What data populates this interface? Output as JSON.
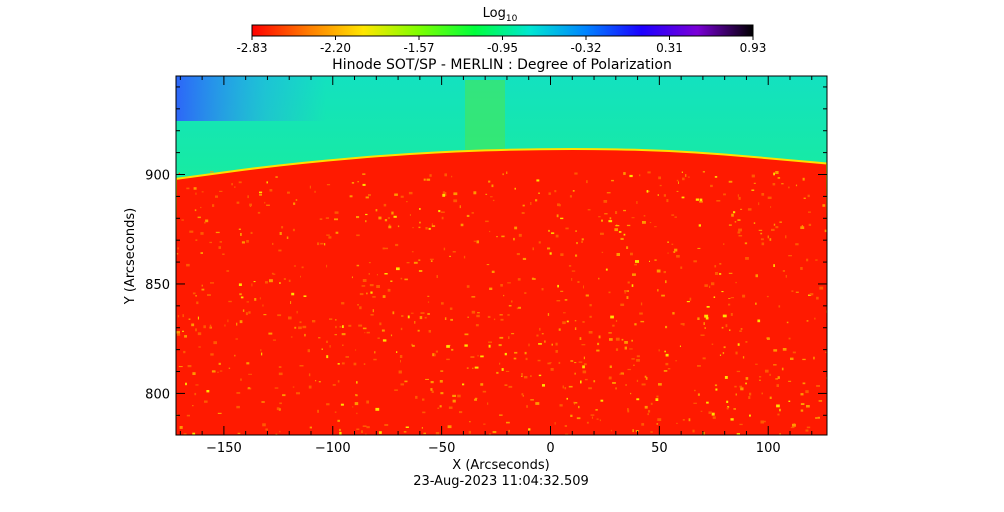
{
  "colorbar": {
    "label_base": "Log",
    "label_sub": "10",
    "ticks": [
      "-2.83",
      "-2.20",
      "-1.57",
      "-0.95",
      "-0.32",
      "0.31",
      "0.93"
    ],
    "range": [
      -2.83,
      0.93
    ],
    "colors": [
      "#ff0000",
      "#ff7a00",
      "#ffe600",
      "#7dff00",
      "#00ff3c",
      "#00e6d2",
      "#0083ff",
      "#1c00ff",
      "#7a00d6",
      "#000000"
    ]
  },
  "title": "Hinode SOT/SP - MERLIN : Degree of Polarization",
  "timestamp": "23-Aug-2023 11:04:32.509",
  "chart_data": {
    "type": "heatmap",
    "title": "Hinode SOT/SP - MERLIN : Degree of Polarization",
    "xlabel": "X (Arcseconds)",
    "ylabel": "Y (Arcseconds)",
    "xlim": [
      -172,
      127
    ],
    "ylim": [
      781,
      945
    ],
    "x_ticks": [
      -150,
      -100,
      -50,
      0,
      50,
      100
    ],
    "x_tick_labels": [
      "−150",
      "−100",
      "−50",
      "0",
      "50",
      "100"
    ],
    "y_ticks": [
      800,
      850,
      900
    ],
    "y_tick_labels": [
      "800",
      "850",
      "900"
    ],
    "limb": {
      "x": [
        -172,
        -120,
        -60,
        0,
        60,
        127
      ],
      "y": [
        898,
        905,
        910,
        912,
        911,
        905
      ]
    },
    "region_values": {
      "disk_log10": -2.8,
      "off_limb_log10": -1.2,
      "top_left_corner_log10": -0.4
    },
    "colorscale_range": [
      -2.83,
      0.93
    ]
  }
}
